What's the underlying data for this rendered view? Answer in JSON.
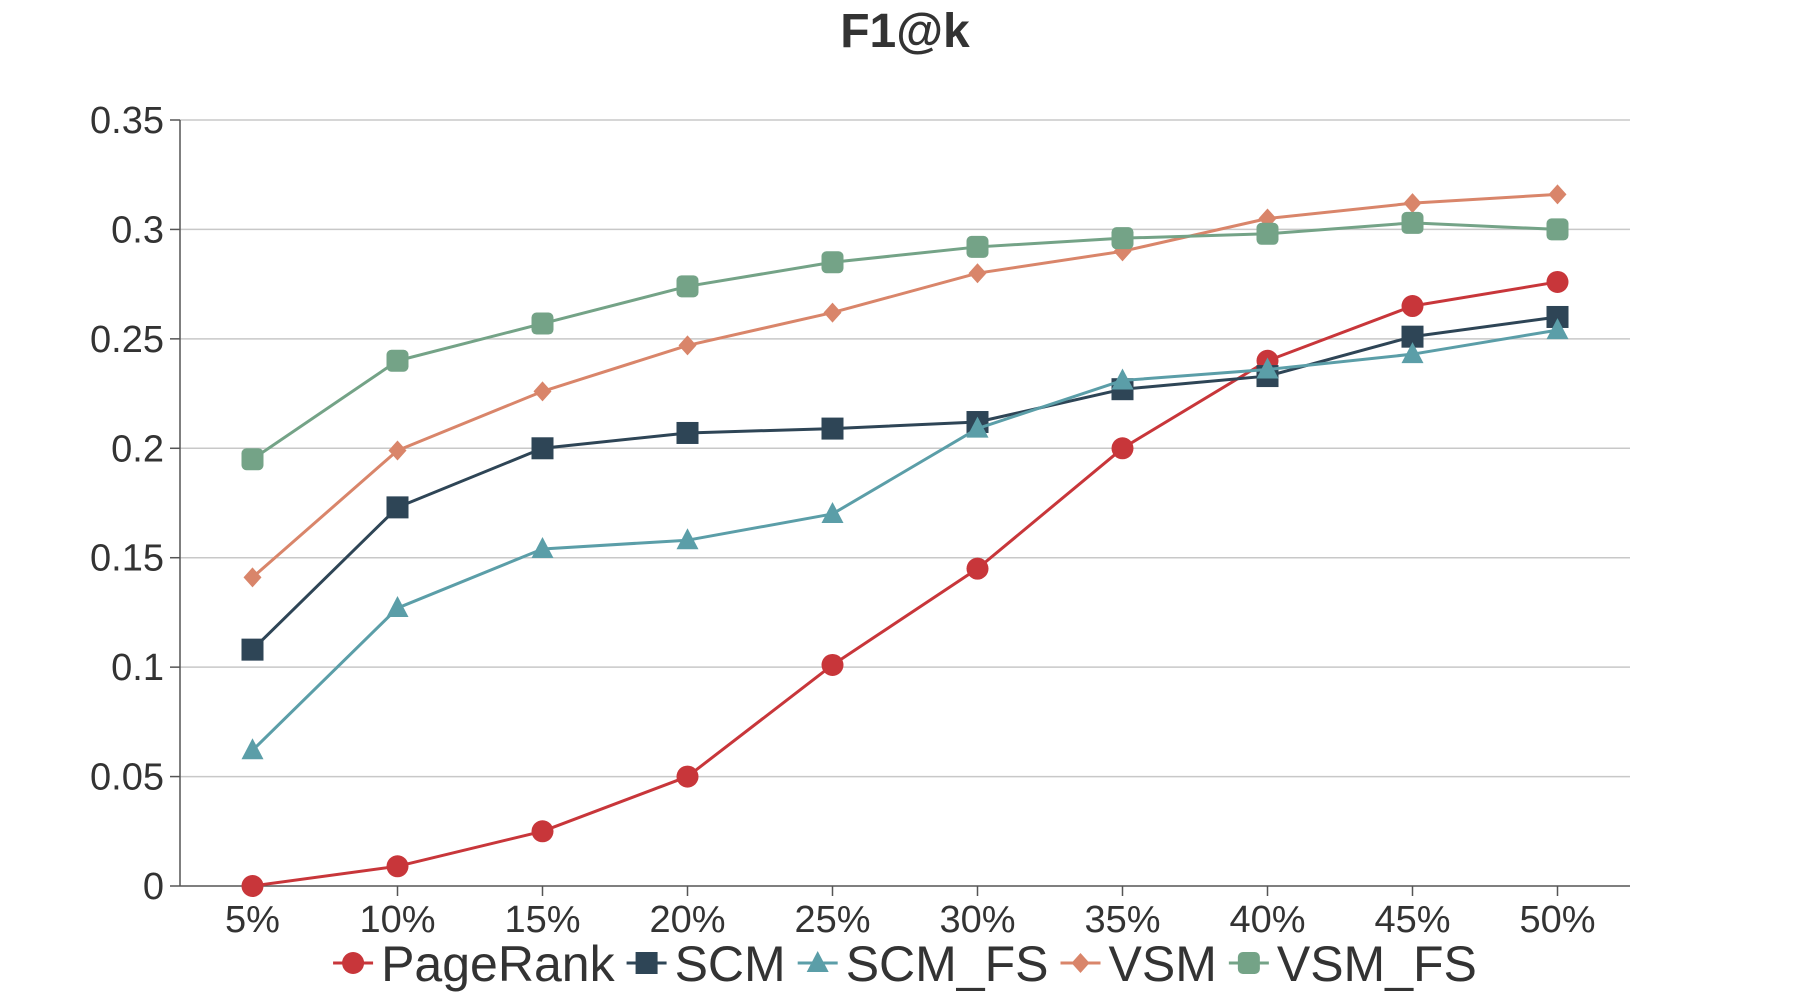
{
  "chart_data": {
    "type": "line",
    "title": "F1@k",
    "xlabel": "",
    "ylabel": "",
    "categories": [
      "5%",
      "10%",
      "15%",
      "20%",
      "25%",
      "30%",
      "35%",
      "40%",
      "45%",
      "50%"
    ],
    "ylim": [
      0,
      0.35
    ],
    "yticks": [
      0,
      0.05,
      0.1,
      0.15,
      0.2,
      0.25,
      0.3,
      0.35
    ],
    "ytick_labels": [
      "0",
      "0.05",
      "0.1",
      "0.15",
      "0.2",
      "0.25",
      "0.3",
      "0.35"
    ],
    "grid": "horizontal",
    "legend_position": "bottom",
    "series": [
      {
        "name": "PageRank",
        "color": "#c8363a",
        "marker": "circle",
        "values": [
          0.0,
          0.009,
          0.025,
          0.05,
          0.101,
          0.145,
          0.2,
          0.24,
          0.265,
          0.276
        ]
      },
      {
        "name": "SCM",
        "color": "#2e4556",
        "marker": "square",
        "values": [
          0.108,
          0.173,
          0.2,
          0.207,
          0.209,
          0.212,
          0.227,
          0.233,
          0.251,
          0.26
        ]
      },
      {
        "name": "SCM_FS",
        "color": "#5b9ea8",
        "marker": "triangle",
        "values": [
          0.062,
          0.127,
          0.154,
          0.158,
          0.17,
          0.209,
          0.231,
          0.236,
          0.243,
          0.254
        ]
      },
      {
        "name": "VSM",
        "color": "#d9856a",
        "marker": "diamond",
        "values": [
          0.141,
          0.199,
          0.226,
          0.247,
          0.262,
          0.28,
          0.29,
          0.305,
          0.312,
          0.316
        ]
      },
      {
        "name": "VSM_FS",
        "color": "#74a387",
        "marker": "rounded-square",
        "values": [
          0.195,
          0.24,
          0.257,
          0.274,
          0.285,
          0.292,
          0.296,
          0.298,
          0.303,
          0.3
        ]
      }
    ]
  }
}
